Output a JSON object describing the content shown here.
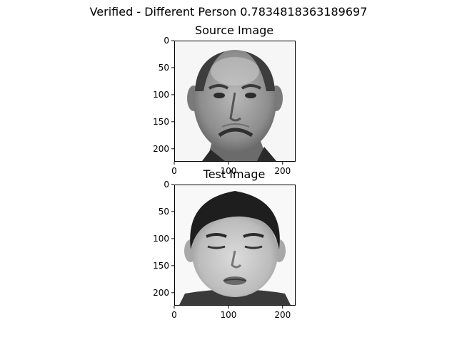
{
  "figure": {
    "suptitle": "Verified - Different Person 0.7834818363189697"
  },
  "chart_data": [
    {
      "type": "image",
      "title": "Source Image",
      "image_icon": "photo-older-man-frowning",
      "xlim": [
        0,
        224
      ],
      "ylim": [
        224,
        0
      ],
      "xticks": [
        0,
        100,
        200
      ],
      "yticks": [
        0,
        50,
        100,
        150,
        200
      ],
      "xtick_labels": [
        "0",
        "100",
        "200"
      ],
      "ytick_labels": [
        "0",
        "50",
        "100",
        "150",
        "200"
      ],
      "colormap": "gray"
    },
    {
      "type": "image",
      "title": "Test Image",
      "image_icon": "photo-young-man-eyes-closed",
      "xlim": [
        0,
        224
      ],
      "ylim": [
        224,
        0
      ],
      "xticks": [
        0,
        100,
        200
      ],
      "yticks": [
        0,
        50,
        100,
        150,
        200
      ],
      "xtick_labels": [
        "0",
        "100",
        "200"
      ],
      "ytick_labels": [
        "0",
        "50",
        "100",
        "150",
        "200"
      ],
      "colormap": "gray"
    }
  ]
}
